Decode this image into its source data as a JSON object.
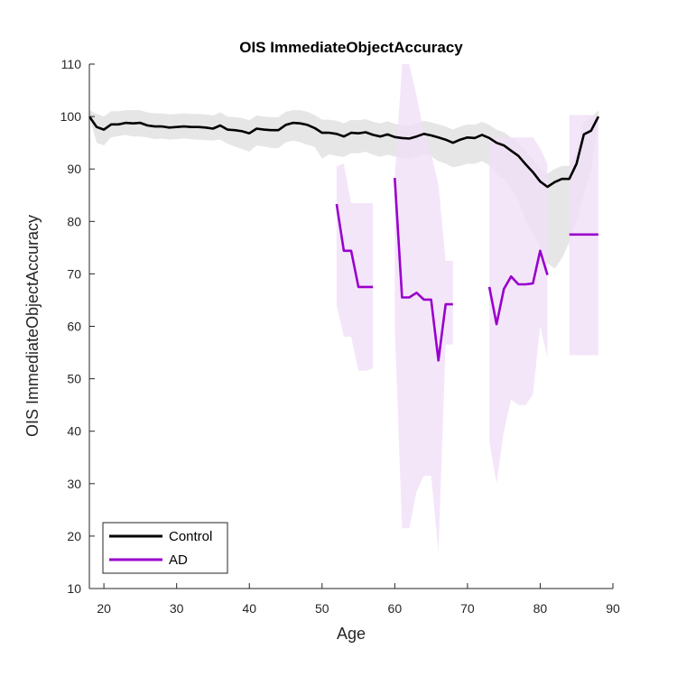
{
  "chart_data": {
    "type": "line",
    "title": "OIS ImmediateObjectAccuracy",
    "xlabel": "Age",
    "ylabel": "OIS ImmediateObjectAccuracy",
    "xlim": [
      18,
      90
    ],
    "ylim": [
      10,
      110
    ],
    "xticks": [
      20,
      30,
      40,
      50,
      60,
      70,
      80,
      90
    ],
    "yticks": [
      10,
      20,
      30,
      40,
      50,
      60,
      70,
      80,
      90,
      100,
      110
    ],
    "grid": false,
    "legend_position": "bottom-left",
    "series": [
      {
        "name": "Control",
        "color": "#000000",
        "band_color": "#e3e3e3",
        "x": [
          18,
          19,
          20,
          21,
          22,
          23,
          24,
          25,
          26,
          27,
          28,
          29,
          30,
          31,
          32,
          33,
          34,
          35,
          36,
          37,
          38,
          39,
          40,
          41,
          42,
          43,
          44,
          45,
          46,
          47,
          48,
          49,
          50,
          51,
          52,
          53,
          54,
          55,
          56,
          57,
          58,
          59,
          60,
          61,
          62,
          63,
          64,
          65,
          66,
          67,
          68,
          69,
          70,
          71,
          72,
          73,
          74,
          75,
          76,
          77,
          78,
          79,
          80,
          81,
          82,
          83,
          84,
          85,
          86,
          87,
          88
        ],
        "values": [
          100,
          98,
          97.5,
          98.5,
          98.5,
          98.8,
          98.7,
          98.8,
          98.3,
          98.1,
          98.1,
          97.9,
          98,
          98.1,
          98,
          98,
          97.9,
          97.7,
          98.3,
          97.5,
          97.4,
          97.2,
          96.8,
          97.7,
          97.5,
          97.4,
          97.4,
          98.4,
          98.8,
          98.7,
          98.4,
          97.8,
          96.9,
          96.9,
          96.7,
          96.2,
          96.9,
          96.8,
          97,
          96.5,
          96.2,
          96.6,
          96.1,
          95.9,
          95.8,
          96.2,
          96.7,
          96.4,
          96,
          95.6,
          95,
          95.6,
          96,
          95.9,
          96.5,
          95.9,
          95,
          94.5,
          93.5,
          92.5,
          90.9,
          89.4,
          87.6,
          86.6,
          87.5,
          88.1,
          88.1,
          91,
          96.6,
          97.3,
          100
        ],
        "lower": [
          100,
          95,
          94.5,
          96,
          96.3,
          96.5,
          96.2,
          96.2,
          96,
          95.7,
          95.8,
          95.6,
          95.7,
          95.8,
          95.7,
          95.6,
          95.5,
          95.4,
          95.6,
          94.8,
          94.3,
          93.8,
          93.3,
          94.5,
          94.3,
          94,
          94,
          95.1,
          95.4,
          95.1,
          94.6,
          94.2,
          92,
          92.8,
          92.5,
          92.3,
          93,
          93,
          93.3,
          92.7,
          92.3,
          92.7,
          92.4,
          92.1,
          92,
          92.3,
          92.8,
          92.4,
          91.5,
          91,
          90.3,
          90.6,
          91,
          91,
          91.5,
          90.7,
          89,
          88,
          86,
          84,
          80,
          78,
          75,
          72,
          71,
          73,
          76,
          80,
          85,
          90,
          99
        ]
      },
      {
        "name": "AD",
        "color": "#9900cc",
        "band_color": "#f1e0f8",
        "segments": [
          {
            "x": [
              52,
              53,
              54,
              55,
              56,
              57
            ],
            "values": [
              83.3,
              74.4,
              74.4,
              67.5,
              67.5,
              67.5
            ],
            "lower": [
              64,
              58,
              58,
              51.5,
              51.5,
              52
            ],
            "upper": [
              90.5,
              91,
              83.5,
              83.5,
              83.5,
              83.5
            ]
          },
          {
            "x": [
              60,
              61,
              62,
              63,
              64,
              65,
              66,
              67,
              68
            ],
            "values": [
              88.3,
              65.5,
              65.5,
              66.4,
              65.1,
              65.1,
              53.5,
              64.2,
              64.2
            ],
            "lower": [
              60,
              21.5,
              21.5,
              28.5,
              31.5,
              31.5,
              17,
              56.5,
              56.5
            ],
            "upper": [
              88.3,
              110,
              110,
              104,
              97,
              93,
              87,
              72.5,
              72.5
            ]
          },
          {
            "x": [
              73,
              74,
              75,
              76,
              77,
              78,
              79,
              80,
              81
            ],
            "values": [
              67.5,
              60.4,
              67.1,
              69.5,
              68,
              68,
              68.2,
              74.4,
              69.8
            ],
            "lower": [
              38,
              30,
              40,
              46,
              45,
              45,
              47,
              60,
              54
            ],
            "upper": [
              96,
              96,
              96,
              96,
              96,
              96,
              96,
              94,
              91
            ]
          },
          {
            "x": [
              84,
              88
            ],
            "values": [
              77.5,
              77.5
            ],
            "lower": [
              54.5,
              54.5
            ],
            "upper": [
              100.3,
              100.3
            ]
          }
        ]
      }
    ]
  }
}
